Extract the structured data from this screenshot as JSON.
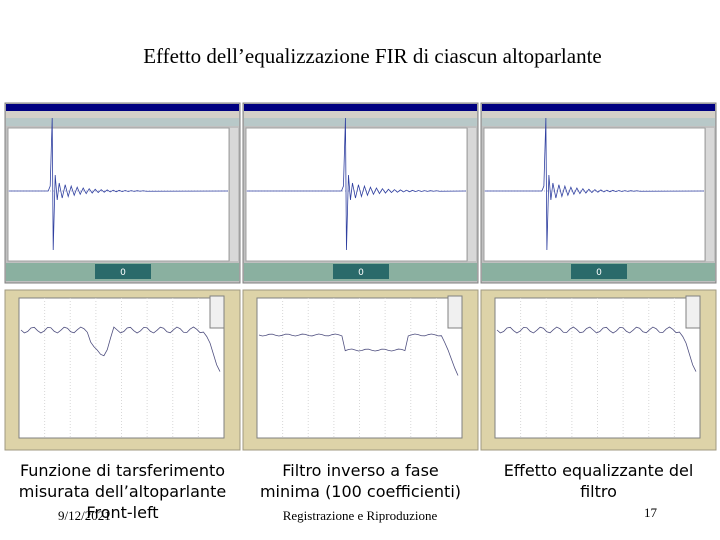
{
  "header": {
    "title": "Effetto dell’equalizzazione FIR di ciascun altoparlante"
  },
  "panels": [
    {
      "status": "0",
      "caption": [
        "Funzione di tarsferimento",
        "misurata dell’altoparlante",
        "Front-left"
      ]
    },
    {
      "status": "0",
      "caption": [
        "Filtro inverso a fase",
        "minima (100 coefficienti)"
      ]
    },
    {
      "status": "0",
      "caption": [
        "Effetto equalizzante del",
        "filtro"
      ]
    }
  ],
  "footer": {
    "date": "9/12/2021",
    "center": "Registrazione e Riproduzione",
    "page": "17"
  }
}
